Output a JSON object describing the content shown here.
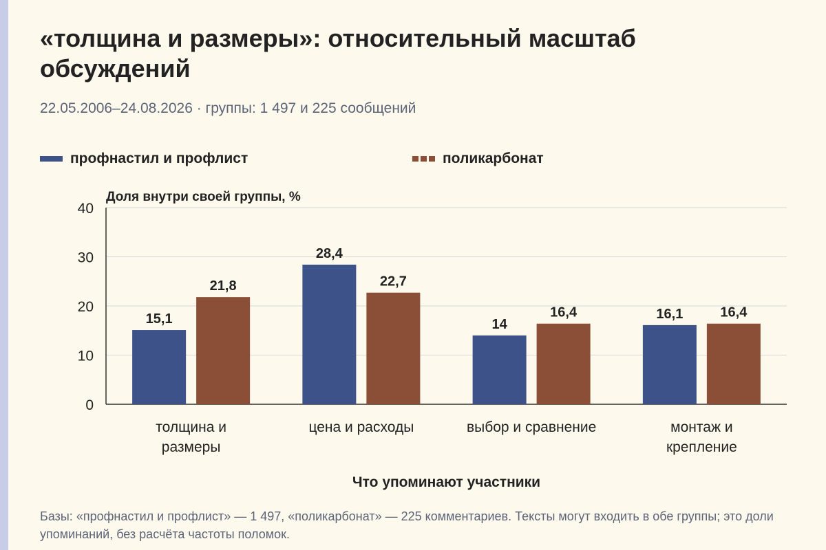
{
  "colors": {
    "background": "#fdf9ec",
    "side_strip": "#c7cde6",
    "series_1": "#3d5288",
    "series_2": "#8b4e36",
    "gridline": "#d8d8d8",
    "axis": "#333333",
    "text_dark": "#222222",
    "text_muted": "#5d6478"
  },
  "header": {
    "title": "«толщина и размеры»: относительный масштаб обсуждений",
    "subtitle": "22.05.2006–24.08.2026 · группы: 1 497 и 225 сообщений"
  },
  "legend": [
    {
      "label": "профнастил и профлист",
      "style": "solid"
    },
    {
      "label": "поликарбонат",
      "style": "dashed"
    }
  ],
  "chart_data": {
    "type": "bar",
    "ylabel": "Доля внутри своей группы, %",
    "xlabel": "Что упоминают участники",
    "ylim": [
      0,
      40
    ],
    "yticks": [
      "0",
      "10",
      "20",
      "30",
      "40"
    ],
    "grid": true,
    "legend_position": "top",
    "categories": [
      [
        "толщина и",
        "размеры"
      ],
      [
        "цена и расходы"
      ],
      [
        "выбор и сравнение"
      ],
      [
        "монтаж и",
        "крепление"
      ]
    ],
    "series": [
      {
        "name": "профнастил и профлист",
        "values": [
          15.1,
          28.4,
          14,
          16.1
        ],
        "labels": [
          "15,1",
          "28,4",
          "14",
          "16,1"
        ]
      },
      {
        "name": "поликарбонат",
        "values": [
          21.8,
          22.7,
          16.4,
          16.4
        ],
        "labels": [
          "21,8",
          "22,7",
          "16,4",
          "16,4"
        ]
      }
    ]
  },
  "footnote": "Базы: «профнастил и профлист» — 1 497, «поликарбонат» — 225 комментариев. Тексты могут входить в обе группы; это доли упоминаний, без расчёта частоты поломок."
}
